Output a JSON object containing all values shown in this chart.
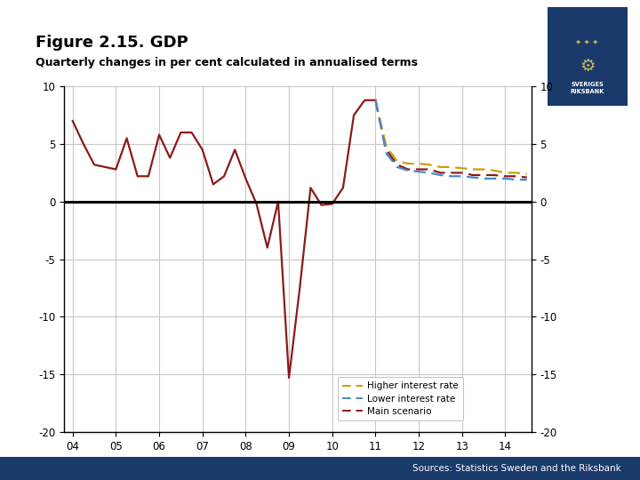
{
  "title": "Figure 2.15. GDP",
  "subtitle": "Quarterly changes in per cent calculated in annualised terms",
  "sources": "Sources: Statistics Sweden and the Riksbank",
  "xlim": [
    2003.8,
    2014.6
  ],
  "ylim": [
    -20,
    10
  ],
  "yticks": [
    -20,
    -15,
    -10,
    -5,
    0,
    5,
    10
  ],
  "xticks": [
    2004,
    2005,
    2006,
    2007,
    2008,
    2009,
    2010,
    2011,
    2012,
    2013,
    2014
  ],
  "xtick_labels": [
    "04",
    "05",
    "06",
    "07",
    "08",
    "09",
    "10",
    "11",
    "12",
    "13",
    "14"
  ],
  "background_color": "#ffffff",
  "plot_bg_color": "#ffffff",
  "grid_color": "#c8c8c8",
  "footer_color": "#1a3a6b",
  "main_color": "#8B1A1A",
  "higher_color": "#C8A000",
  "lower_color": "#4488CC",
  "solid_data_x": [
    2004.0,
    2004.25,
    2004.5,
    2004.75,
    2005.0,
    2005.25,
    2005.5,
    2005.75,
    2006.0,
    2006.25,
    2006.5,
    2006.75,
    2007.0,
    2007.25,
    2007.5,
    2007.75,
    2008.0,
    2008.25,
    2008.5,
    2008.75,
    2009.0,
    2009.25,
    2009.5,
    2009.75,
    2010.0,
    2010.25,
    2010.5,
    2010.75,
    2011.0
  ],
  "solid_data_y": [
    7.0,
    5.0,
    3.2,
    3.0,
    2.8,
    5.5,
    2.2,
    2.2,
    5.8,
    3.8,
    6.0,
    6.0,
    4.5,
    1.5,
    2.2,
    4.5,
    2.0,
    -0.2,
    -4.0,
    0.0,
    -15.3,
    -7.5,
    1.2,
    -0.3,
    -0.2,
    1.2,
    7.5,
    8.8,
    8.8
  ],
  "main_scenario_x": [
    2011.0,
    2011.25,
    2011.5,
    2011.75,
    2012.0,
    2012.25,
    2012.5,
    2012.75,
    2013.0,
    2013.25,
    2013.5,
    2013.75,
    2014.0,
    2014.25,
    2014.5
  ],
  "main_scenario_y": [
    8.8,
    4.5,
    3.2,
    2.8,
    2.8,
    2.8,
    2.5,
    2.5,
    2.5,
    2.3,
    2.3,
    2.3,
    2.2,
    2.2,
    2.1
  ],
  "higher_x": [
    2011.0,
    2011.25,
    2011.5,
    2011.75,
    2012.0,
    2012.25,
    2012.5,
    2012.75,
    2013.0,
    2013.25,
    2013.5,
    2013.75,
    2014.0,
    2014.25,
    2014.5
  ],
  "higher_y": [
    8.8,
    4.8,
    3.5,
    3.3,
    3.3,
    3.2,
    3.0,
    3.0,
    2.9,
    2.8,
    2.8,
    2.7,
    2.5,
    2.5,
    2.4
  ],
  "lower_x": [
    2011.0,
    2011.25,
    2011.5,
    2011.75,
    2012.0,
    2012.25,
    2012.5,
    2012.75,
    2013.0,
    2013.25,
    2013.5,
    2013.75,
    2014.0,
    2014.25,
    2014.5
  ],
  "lower_y": [
    8.8,
    4.2,
    3.0,
    2.7,
    2.6,
    2.5,
    2.3,
    2.2,
    2.2,
    2.1,
    2.0,
    2.0,
    2.0,
    1.9,
    1.9
  ],
  "legend_labels": [
    "Higher interest rate",
    "Lower interest rate",
    "Main scenario"
  ],
  "title_fontsize": 13,
  "subtitle_fontsize": 9,
  "tick_fontsize": 8.5,
  "legend_fontsize": 7.5
}
